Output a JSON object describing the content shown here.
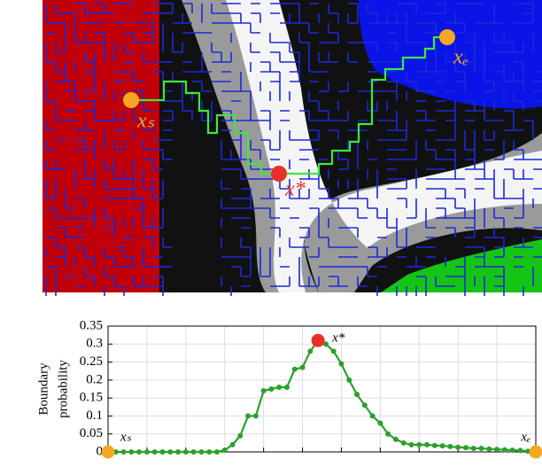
{
  "image_labels": {
    "start": "xₛ",
    "end": "xₑ",
    "boundary": "x*"
  },
  "chart_data": {
    "type": "line",
    "y_label": [
      "Boundary",
      "probability"
    ],
    "x": [
      0,
      1,
      2,
      3,
      4,
      5,
      6,
      7,
      8,
      9,
      10,
      11,
      12,
      13,
      14,
      15,
      16,
      17,
      18,
      19,
      20,
      21,
      22,
      23,
      24,
      25,
      26,
      27,
      28,
      29,
      30,
      31,
      32,
      33,
      34,
      35,
      36,
      37,
      38,
      39,
      40,
      41,
      42,
      43,
      44,
      45,
      46,
      47,
      48,
      49,
      50,
      51,
      52,
      53,
      54,
      55
    ],
    "series": [
      {
        "color": "#2ca02c",
        "values": [
          0,
          0,
          0,
          0,
          0,
          0,
          0,
          0,
          0,
          0,
          0,
          0,
          0,
          0,
          0,
          0.005,
          0.02,
          0.045,
          0.1,
          0.1,
          0.17,
          0.175,
          0.18,
          0.18,
          0.23,
          0.235,
          0.28,
          0.31,
          0.3,
          0.28,
          0.245,
          0.2,
          0.16,
          0.13,
          0.1,
          0.08,
          0.05,
          0.035,
          0.025,
          0.02,
          0.02,
          0.02,
          0.018,
          0.017,
          0.015,
          0.013,
          0.012,
          0.01,
          0.01,
          0.008,
          0.007,
          0.006,
          0.005,
          0.004,
          0.002,
          0
        ]
      }
    ],
    "highlights": [
      {
        "index": 0,
        "color": "#f5a623",
        "label": "xₛ"
      },
      {
        "index": 27,
        "color": "#e8302a",
        "label": "x*"
      },
      {
        "index": 55,
        "color": "#f5a623",
        "label": "xₑ"
      }
    ],
    "xlim": [
      0,
      55
    ],
    "xticks": [
      0,
      5,
      10,
      15,
      20,
      25,
      30,
      35,
      40,
      45,
      50,
      55
    ],
    "ylim": [
      0,
      0.35
    ],
    "yticks": [
      0,
      0.05,
      0.1,
      0.15,
      0.2,
      0.25,
      0.3,
      0.35
    ],
    "grid": true
  }
}
